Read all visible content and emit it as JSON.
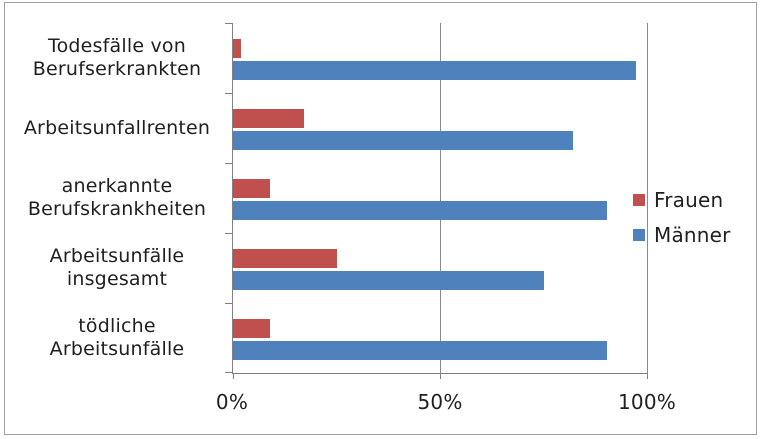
{
  "frame": {
    "background": "#ffffff",
    "border_color": "#a0a0a0"
  },
  "chart_data": {
    "type": "bar",
    "orientation": "horizontal",
    "title": "",
    "categories": [
      "Todesfälle von Berufserkrankten",
      "Arbeitsunfallrenten",
      "anerkannte Berufskrankheiten",
      "Arbeitsunfälle insgesamt",
      "tödliche Arbeitsunfälle"
    ],
    "category_label_lines": [
      [
        "Todesfälle von",
        "Berufserkrankten"
      ],
      [
        "Arbeitsunfallrenten"
      ],
      [
        "anerkannte",
        "Berufskrankheiten"
      ],
      [
        "Arbeitsunfälle",
        "insgesamt"
      ],
      [
        "tödliche",
        "Arbeitsunfälle"
      ]
    ],
    "series": [
      {
        "name": "Frauen",
        "color": "#c0504d",
        "values": [
          2,
          17,
          9,
          25,
          9
        ]
      },
      {
        "name": "Männer",
        "color": "#4f81bd",
        "values": [
          97,
          82,
          90,
          75,
          90
        ]
      }
    ],
    "x_axis": {
      "min": 0,
      "max": 100,
      "ticks": [
        {
          "value": 0,
          "label": "0%"
        },
        {
          "value": 50,
          "label": "50%"
        },
        {
          "value": 100,
          "label": "100%"
        }
      ]
    },
    "gridlines": [
      50,
      100
    ],
    "grid": "vertical-only",
    "legend_position": "right",
    "axis_color": "#808080",
    "gridline_color": "#8a8a8a",
    "text_color": "#1f1f1f"
  }
}
